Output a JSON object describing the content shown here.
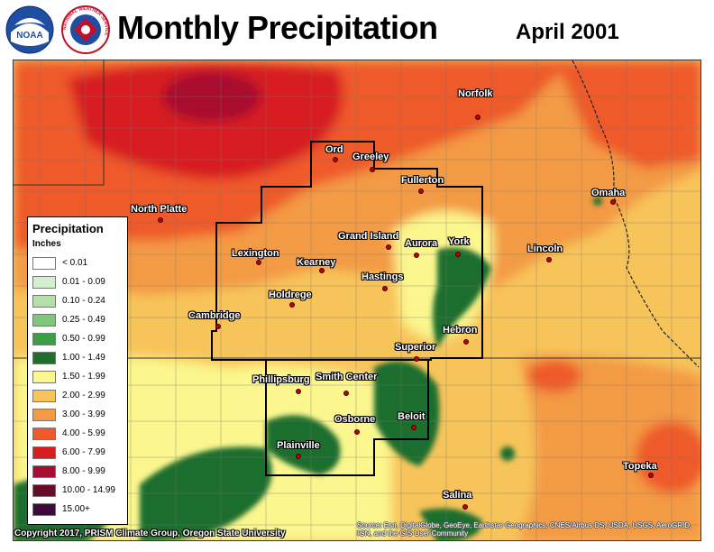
{
  "header": {
    "title": "Monthly Precipitation",
    "date": "April 2001",
    "logo_noaa_text": "NOAA",
    "logo_nws_text": "NATIONAL WEATHER SERVICE"
  },
  "legend": {
    "title": "Precipitation",
    "units": "Inches",
    "items": [
      {
        "label": "< 0.01",
        "color": "#ffffff"
      },
      {
        "label": "0.01 - 0.09",
        "color": "#d4eed0"
      },
      {
        "label": "0.10 - 0.24",
        "color": "#b3e0a9"
      },
      {
        "label": "0.25 - 0.49",
        "color": "#7ec77a"
      },
      {
        "label": "0.50 - 0.99",
        "color": "#3a9e44"
      },
      {
        "label": "1.00 - 1.49",
        "color": "#1f6e2e"
      },
      {
        "label": "1.50 - 1.99",
        "color": "#fbf68e"
      },
      {
        "label": "2.00 - 2.99",
        "color": "#f7c45a"
      },
      {
        "label": "3.00 - 3.99",
        "color": "#f39a45"
      },
      {
        "label": "4.00 - 5.99",
        "color": "#ee5a2c"
      },
      {
        "label": "6.00 - 7.99",
        "color": "#d71d21"
      },
      {
        "label": "8.00 - 9.99",
        "color": "#a80d2f"
      },
      {
        "label": "10.00 - 14.99",
        "color": "#6b0a27"
      },
      {
        "label": "15.00+",
        "color": "#3b0a3a"
      }
    ]
  },
  "cities": [
    {
      "name": "Norfolk"
    },
    {
      "name": "Ord"
    },
    {
      "name": "Greeley"
    },
    {
      "name": "Fullerton"
    },
    {
      "name": "North Platte"
    },
    {
      "name": "Omaha"
    },
    {
      "name": "Grand Island"
    },
    {
      "name": "Aurora"
    },
    {
      "name": "York"
    },
    {
      "name": "Lexington"
    },
    {
      "name": "Kearney"
    },
    {
      "name": "Lincoln"
    },
    {
      "name": "Hastings"
    },
    {
      "name": "Holdrege"
    },
    {
      "name": "Cambridge"
    },
    {
      "name": "Hebron"
    },
    {
      "name": "Superior"
    },
    {
      "name": "Phillipsburg"
    },
    {
      "name": "Smith Center"
    },
    {
      "name": "Beloit"
    },
    {
      "name": "Osborne"
    },
    {
      "name": "Plainville"
    },
    {
      "name": "Topeka"
    },
    {
      "name": "Salina"
    }
  ],
  "footer": {
    "copyright": "Copyright 2017, PRISM Climate Group, Oregon State University",
    "source_line1": "Source: Esri, DigitalGlobe, GeoEye, Earthstar Geographics, CNES/Airbus DS, USDA, USGS, AeroGRID,",
    "source_line2": "IGN, and the GIS User Community"
  }
}
